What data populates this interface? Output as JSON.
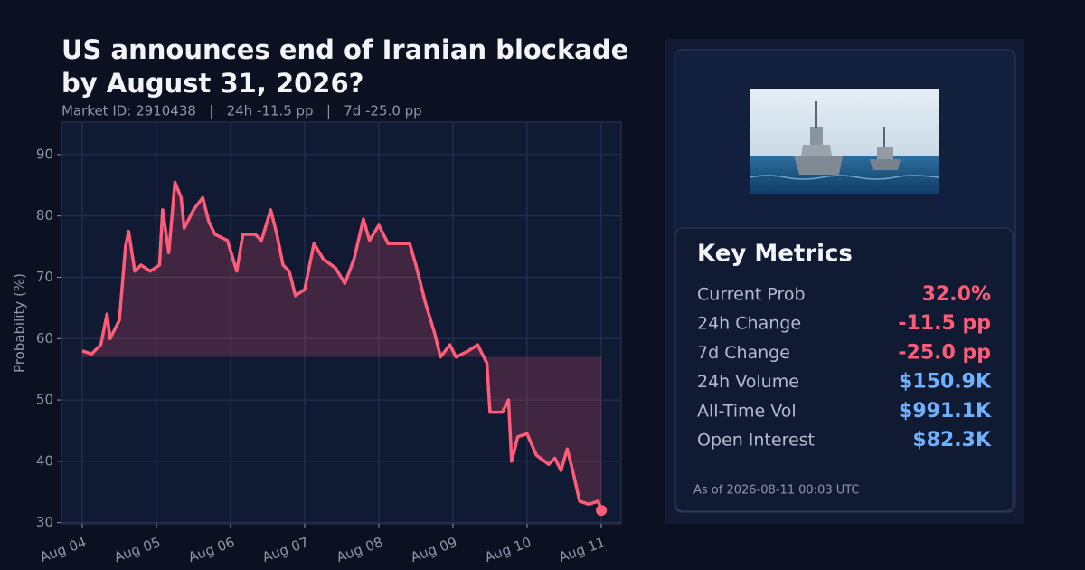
{
  "chart_data": {
    "type": "line",
    "title": [
      "US announces end of Iranian blockade",
      "by August 31, 2026?"
    ],
    "subtitle": "Market ID: 2910438   |   24h -11.5 pp   |   7d -25.0 pp",
    "y_label": "Probability (%)",
    "x": [
      "2026-08-04T00:00",
      "2026-08-04T03:00",
      "2026-08-04T06:00",
      "2026-08-04T08:00",
      "2026-08-04T09:00",
      "2026-08-04T12:00",
      "2026-08-04T14:00",
      "2026-08-04T15:00",
      "2026-08-04T17:00",
      "2026-08-04T19:00",
      "2026-08-04T22:00",
      "2026-08-05T01:00",
      "2026-08-05T02:00",
      "2026-08-05T04:00",
      "2026-08-05T06:00",
      "2026-08-05T08:00",
      "2026-08-05T09:00",
      "2026-08-05T12:00",
      "2026-08-05T15:00",
      "2026-08-05T17:00",
      "2026-08-05T19:00",
      "2026-08-05T23:00",
      "2026-08-06T02:00",
      "2026-08-06T04:00",
      "2026-08-06T08:00",
      "2026-08-06T10:00",
      "2026-08-06T13:00",
      "2026-08-06T15:00",
      "2026-08-06T17:00",
      "2026-08-06T19:00",
      "2026-08-06T21:00",
      "2026-08-07T00:00",
      "2026-08-07T03:00",
      "2026-08-07T06:00",
      "2026-08-07T10:00",
      "2026-08-07T13:00",
      "2026-08-07T16:00",
      "2026-08-07T19:00",
      "2026-08-07T21:00",
      "2026-08-08T00:00",
      "2026-08-08T03:00",
      "2026-08-08T10:00",
      "2026-08-08T12:00",
      "2026-08-08T15:00",
      "2026-08-08T18:00",
      "2026-08-08T20:00",
      "2026-08-08T23:00",
      "2026-08-09T01:00",
      "2026-08-09T05:00",
      "2026-08-09T08:00",
      "2026-08-09T11:00",
      "2026-08-09T12:00",
      "2026-08-09T16:00",
      "2026-08-09T18:00",
      "2026-08-09T19:00",
      "2026-08-09T21:00",
      "2026-08-10T00:00",
      "2026-08-10T03:00",
      "2026-08-10T07:00",
      "2026-08-10T09:00",
      "2026-08-10T11:00",
      "2026-08-10T13:00",
      "2026-08-10T15:00",
      "2026-08-10T17:00",
      "2026-08-10T20:00",
      "2026-08-10T23:00",
      "2026-08-11T00:03"
    ],
    "series": [
      {
        "name": "Probability",
        "color": "#ff5c7a",
        "values": [
          58,
          57.5,
          59,
          64,
          60,
          63,
          75,
          77.5,
          71,
          72,
          71,
          72,
          81,
          74,
          85.5,
          83,
          78,
          81,
          83,
          79,
          77,
          76,
          71,
          77,
          77,
          76,
          81,
          77,
          72,
          71,
          67,
          68,
          75.5,
          73,
          71.5,
          69,
          73,
          79.5,
          76,
          78.5,
          75.5,
          75.5,
          72,
          66,
          61,
          57,
          59,
          57,
          58,
          59,
          56,
          48,
          48,
          50,
          40,
          44,
          44.5,
          41,
          39.5,
          40.5,
          38.5,
          42,
          38,
          33.5,
          33,
          33.5,
          32
        ]
      }
    ],
    "baseline": 57,
    "xlim": [
      "2026-08-03T17:16",
      "2026-08-11T06:28"
    ],
    "xticks": [
      {
        "value": "2026-08-04T00:00",
        "label": "Aug 04"
      },
      {
        "value": "2026-08-05T00:00",
        "label": "Aug 05"
      },
      {
        "value": "2026-08-06T00:00",
        "label": "Aug 06"
      },
      {
        "value": "2026-08-07T00:00",
        "label": "Aug 07"
      },
      {
        "value": "2026-08-08T00:00",
        "label": "Aug 08"
      },
      {
        "value": "2026-08-09T00:00",
        "label": "Aug 09"
      },
      {
        "value": "2026-08-10T00:00",
        "label": "Aug 10"
      },
      {
        "value": "2026-08-11T00:00",
        "label": "Aug 11"
      }
    ],
    "ylim": [
      29.8,
      95.3
    ],
    "yticks": [
      30,
      40,
      50,
      60,
      70,
      80,
      90
    ],
    "grid": true
  },
  "panel": {
    "heading": "Key Metrics",
    "metrics": [
      {
        "label": "Current Prob",
        "value": "32.0%",
        "color": "#ff5c7a"
      },
      {
        "label": "24h Change",
        "value": "-11.5 pp",
        "color": "#ff5c7a"
      },
      {
        "label": "7d Change",
        "value": "-25.0 pp",
        "color": "#ff5c7a"
      },
      {
        "label": "24h Volume",
        "value": "$150.9K",
        "color": "#6fb1ff"
      },
      {
        "label": "All-Time Vol",
        "value": "$991.1K",
        "color": "#6fb1ff"
      },
      {
        "label": "Open Interest",
        "value": "$82.3K",
        "color": "#6fb1ff"
      }
    ],
    "footer": "As of 2026-08-11 00:03 UTC"
  }
}
